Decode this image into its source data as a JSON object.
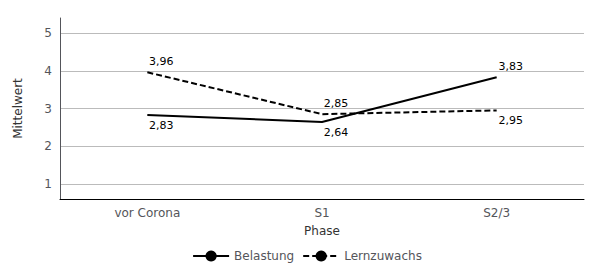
{
  "chart_data": {
    "type": "line",
    "xlabel": "Phase",
    "ylabel": "Mittelwert",
    "categories": [
      "vor Corona",
      "S1",
      "S2/3"
    ],
    "series": [
      {
        "name": "Belastung",
        "color": "#000000",
        "line_style": "solid",
        "values": [
          2.83,
          2.64,
          3.83
        ],
        "value_labels": [
          "2,83",
          "2,64",
          "3,83"
        ]
      },
      {
        "name": "Lernzuwachs",
        "color": "#000000",
        "line_style": "dashed",
        "values": [
          3.96,
          2.85,
          2.95
        ],
        "value_labels": [
          "3,96",
          "2,85",
          "2,95"
        ]
      }
    ],
    "ylim": [
      0.6,
      5.4
    ],
    "yticks": [
      1,
      2,
      3,
      4,
      5
    ],
    "grid": true,
    "data_labels": true,
    "legend": "bottom"
  }
}
